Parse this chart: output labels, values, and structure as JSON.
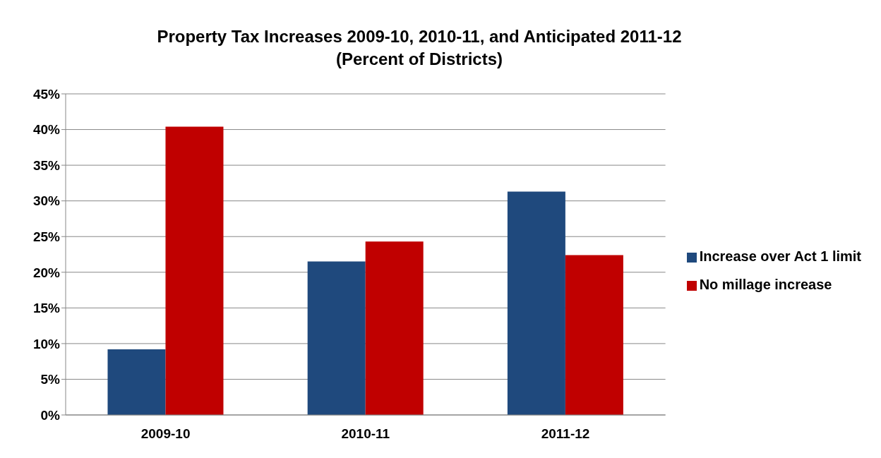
{
  "chart_data": {
    "type": "bar",
    "title": "Property Tax Increases 2009-10, 2010-11, and Anticipated 2011-12\n(Percent of Districts)",
    "categories": [
      "2009-10",
      "2010-11",
      "2011-12"
    ],
    "series": [
      {
        "name": "Increase over Act 1 limit",
        "color": "#1f497d",
        "values": [
          9.2,
          21.5,
          31.3
        ]
      },
      {
        "name": "No millage increase",
        "color": "#c00000",
        "values": [
          40.4,
          24.3,
          22.4
        ]
      }
    ],
    "ylim": [
      0,
      45
    ],
    "yticks": [
      {
        "value": 0,
        "label": "0%"
      },
      {
        "value": 5,
        "label": "5%"
      },
      {
        "value": 10,
        "label": "10%"
      },
      {
        "value": 15,
        "label": "15%"
      },
      {
        "value": 20,
        "label": "20%"
      },
      {
        "value": 25,
        "label": "25%"
      },
      {
        "value": 30,
        "label": "30%"
      },
      {
        "value": 35,
        "label": "35%"
      },
      {
        "value": 40,
        "label": "40%"
      },
      {
        "value": 45,
        "label": "45%"
      }
    ],
    "grid": "y",
    "legend": "right"
  }
}
